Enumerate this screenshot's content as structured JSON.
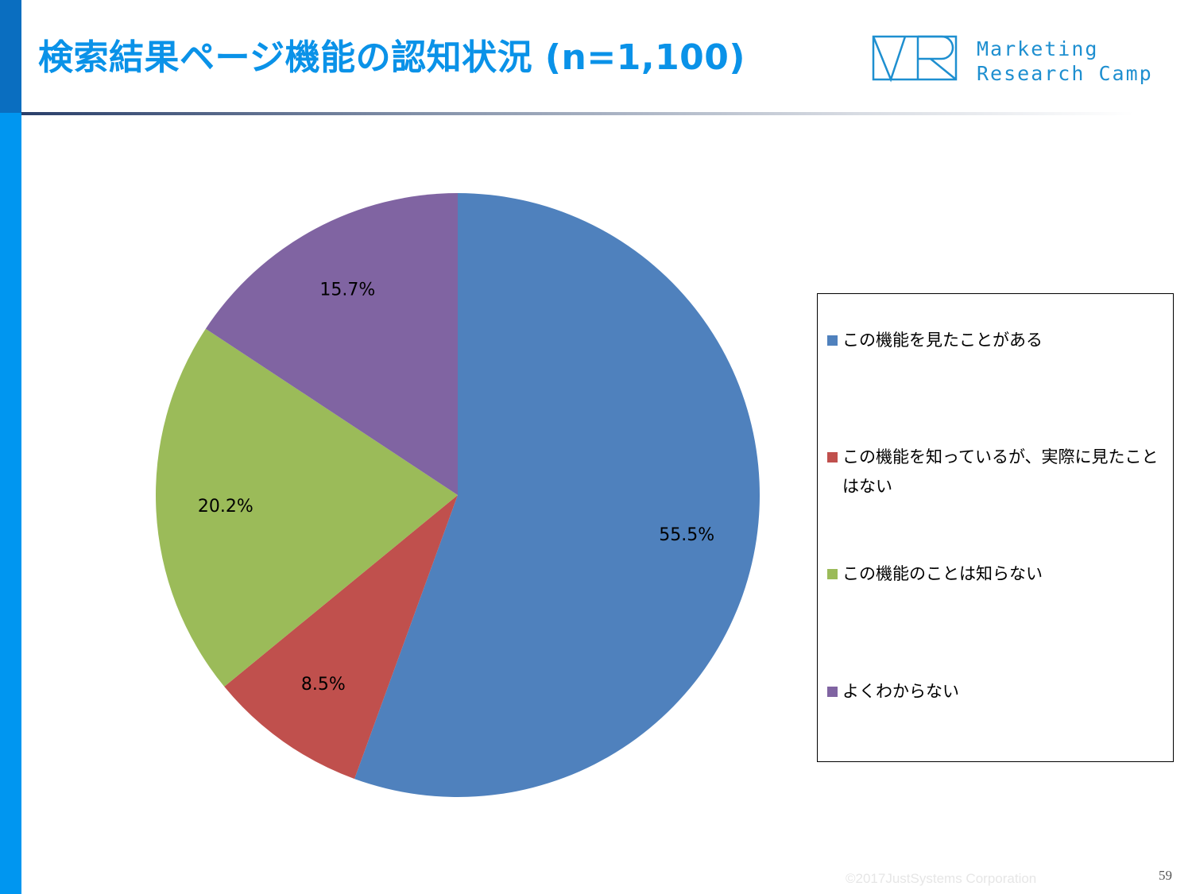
{
  "header": {
    "title": "検索結果ページ機能の認知状況 (n=1,100)",
    "logo_line1": "Marketing",
    "logo_line2": "Research Camp"
  },
  "colors": {
    "accent": "#0a92e8",
    "sidebar": "#0096f0",
    "sidebar_dark": "#0a6ec0"
  },
  "chart_data": {
    "type": "pie",
    "start_angle_deg": 0,
    "direction": "clockwise",
    "slices": [
      {
        "label": "この機能を見たことがある",
        "value": 55.5,
        "display": "55.5%",
        "color": "#4f81bd"
      },
      {
        "label": "この機能を知っているが、実際に見たことはない",
        "value": 8.5,
        "display": "8.5%",
        "color": "#c0504d"
      },
      {
        "label": "この機能のことは知らない",
        "value": 20.2,
        "display": "20.2%",
        "color": "#9bbb59"
      },
      {
        "label": "よくわからない",
        "value": 15.7,
        "display": "15.7%",
        "color": "#8064a2"
      }
    ],
    "legend_position": "right"
  },
  "footer": {
    "copyright": "©2017JustSystems Corporation",
    "page_number": "59"
  }
}
